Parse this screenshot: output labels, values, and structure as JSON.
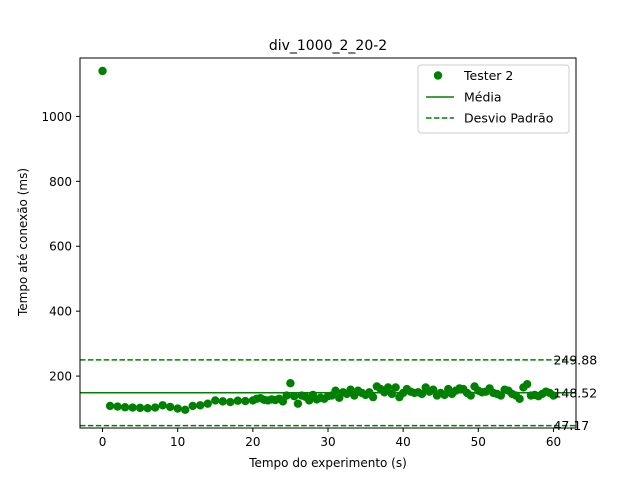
{
  "chart_data": {
    "type": "scatter",
    "title": "div_1000_2_20-2",
    "xlabel": "Tempo do experimento (s)",
    "ylabel": "Tempo até conexão (ms)",
    "xlim": [
      -3,
      63
    ],
    "ylim": [
      40,
      1180
    ],
    "xticks": [
      0,
      10,
      20,
      30,
      40,
      50,
      60
    ],
    "yticks": [
      200,
      400,
      600,
      800,
      1000
    ],
    "grid": false,
    "legend_position": "top-right",
    "color": "#008000",
    "series": [
      {
        "name": "Tester 2",
        "points": [
          [
            0.0,
            1140
          ],
          [
            1.0,
            108
          ],
          [
            2.0,
            106
          ],
          [
            3.0,
            104
          ],
          [
            4.0,
            103
          ],
          [
            5.0,
            102
          ],
          [
            6.0,
            101
          ],
          [
            7.0,
            103
          ],
          [
            8.0,
            110
          ],
          [
            9.0,
            105
          ],
          [
            10.0,
            100
          ],
          [
            11.0,
            96
          ],
          [
            12.0,
            108
          ],
          [
            13.0,
            110
          ],
          [
            14.0,
            115
          ],
          [
            15.0,
            125
          ],
          [
            16.0,
            122
          ],
          [
            17.0,
            120
          ],
          [
            18.0,
            124
          ],
          [
            19.0,
            123
          ],
          [
            20.0,
            125
          ],
          [
            20.5,
            130
          ],
          [
            21.0,
            132
          ],
          [
            21.5,
            127
          ],
          [
            22.0,
            125
          ],
          [
            22.5,
            128
          ],
          [
            23.0,
            126
          ],
          [
            23.5,
            130
          ],
          [
            24.0,
            122
          ],
          [
            24.5,
            140
          ],
          [
            25.0,
            178
          ],
          [
            25.5,
            138
          ],
          [
            26.0,
            115
          ],
          [
            26.5,
            140
          ],
          [
            27.0,
            136
          ],
          [
            27.5,
            125
          ],
          [
            28.0,
            142
          ],
          [
            28.5,
            128
          ],
          [
            29.0,
            133
          ],
          [
            29.5,
            130
          ],
          [
            30.0,
            138
          ],
          [
            30.5,
            140
          ],
          [
            31.0,
            155
          ],
          [
            31.5,
            133
          ],
          [
            32.0,
            150
          ],
          [
            32.5,
            145
          ],
          [
            33.0,
            158
          ],
          [
            33.5,
            140
          ],
          [
            34.0,
            155
          ],
          [
            34.5,
            148
          ],
          [
            35.0,
            142
          ],
          [
            35.5,
            150
          ],
          [
            36.0,
            135
          ],
          [
            36.5,
            168
          ],
          [
            37.0,
            160
          ],
          [
            37.5,
            150
          ],
          [
            38.0,
            165
          ],
          [
            38.5,
            145
          ],
          [
            39.0,
            165
          ],
          [
            39.5,
            135
          ],
          [
            40.0,
            148
          ],
          [
            40.5,
            160
          ],
          [
            41.0,
            152
          ],
          [
            41.5,
            148
          ],
          [
            42.0,
            150
          ],
          [
            42.5,
            145
          ],
          [
            43.0,
            165
          ],
          [
            43.5,
            152
          ],
          [
            44.0,
            158
          ],
          [
            44.5,
            140
          ],
          [
            45.0,
            148
          ],
          [
            45.5,
            142
          ],
          [
            46.0,
            160
          ],
          [
            46.5,
            145
          ],
          [
            47.0,
            155
          ],
          [
            47.5,
            162
          ],
          [
            48.0,
            160
          ],
          [
            48.5,
            148
          ],
          [
            49.0,
            140
          ],
          [
            49.5,
            168
          ],
          [
            50.0,
            155
          ],
          [
            50.5,
            150
          ],
          [
            51.0,
            152
          ],
          [
            51.5,
            162
          ],
          [
            52.0,
            148
          ],
          [
            52.5,
            145
          ],
          [
            53.0,
            140
          ],
          [
            53.5,
            158
          ],
          [
            54.0,
            155
          ],
          [
            54.5,
            145
          ],
          [
            55.0,
            140
          ],
          [
            55.5,
            130
          ],
          [
            56.0,
            165
          ],
          [
            56.5,
            175
          ],
          [
            57.0,
            140
          ],
          [
            57.5,
            142
          ],
          [
            58.0,
            138
          ],
          [
            58.5,
            145
          ],
          [
            59.0,
            152
          ],
          [
            59.5,
            148
          ],
          [
            60.0,
            140
          ]
        ]
      }
    ],
    "reference_lines": [
      {
        "name": "Média",
        "value": 148.52,
        "label": "148.52",
        "style": "solid"
      },
      {
        "name": "Desvio Padrão",
        "value": 249.88,
        "label": "249.88",
        "style": "dashed"
      },
      {
        "name": "Desvio Padrão",
        "value": 47.17,
        "label": "47.17",
        "style": "dashed"
      }
    ],
    "legend": [
      "Tester 2",
      "Média",
      "Desvio Padrão"
    ]
  }
}
